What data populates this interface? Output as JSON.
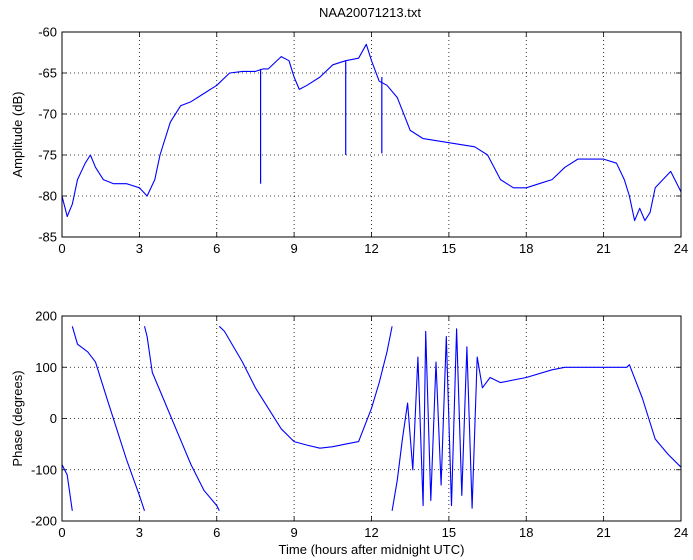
{
  "figure": {
    "title": "NAA20071213.txt",
    "line_color": "#0000ff",
    "grid_color": "#000000"
  },
  "chart_data": [
    {
      "type": "line",
      "title": "NAA20071213.txt",
      "xlabel": "",
      "ylabel": "Amplitude (dB)",
      "xlim": [
        0,
        24
      ],
      "ylim": [
        -85,
        -60
      ],
      "xticks": [
        "0",
        "3",
        "6",
        "9",
        "12",
        "15",
        "18",
        "21",
        "24"
      ],
      "yticks": [
        "-60",
        "-65",
        "-70",
        "-75",
        "-80",
        "-85"
      ],
      "grid": true,
      "series": [
        {
          "x": [
            0,
            0.2,
            0.4,
            0.6,
            0.9,
            1.1,
            1.3,
            1.6,
            2.0,
            2.5,
            3.0,
            3.3,
            3.6,
            3.8,
            4.2,
            4.6,
            5.0,
            5.5,
            6.0,
            6.5,
            7.0,
            7.5,
            7.8,
            8.0,
            8.5,
            8.8,
            9.0,
            9.2,
            9.5,
            10.0,
            10.5,
            11.0,
            11.5,
            11.8,
            12.0,
            12.3,
            12.6,
            13.0,
            13.5,
            14.0,
            15.0,
            16.0,
            16.5,
            17.0,
            17.5,
            18.0,
            18.5,
            19.0,
            19.5,
            20.0,
            20.5,
            21.0,
            21.5,
            21.8,
            22.0,
            22.2,
            22.4,
            22.6,
            22.8,
            23.0,
            23.3,
            23.6,
            24.0
          ],
          "y": [
            -80,
            -82.5,
            -81,
            -78,
            -76,
            -75,
            -76.5,
            -78,
            -78.5,
            -78.5,
            -79,
            -80,
            -78,
            -75,
            -71,
            -69,
            -68.5,
            -67.5,
            -66.5,
            -65,
            -64.8,
            -64.8,
            -64.5,
            -64.5,
            -63,
            -63.5,
            -65.5,
            -67,
            -66.5,
            -65.5,
            -64,
            -63.5,
            -63.2,
            -61.5,
            -63.5,
            -66,
            -66.5,
            -68,
            -72,
            -73,
            -73.5,
            -74,
            -75,
            -78,
            -79,
            -79,
            -78.5,
            -78,
            -76.5,
            -75.5,
            -75.5,
            -75.5,
            -76,
            -78,
            -80,
            -83,
            -81.5,
            -83,
            -82,
            -79,
            -78,
            -77,
            -79.5
          ]
        }
      ],
      "spikes": [
        {
          "x": 7.7,
          "y_from": -64.5,
          "y_to": -78.5
        },
        {
          "x": 11.0,
          "y_from": -63.5,
          "y_to": -75
        },
        {
          "x": 12.4,
          "y_from": -65.5,
          "y_to": -74.8
        }
      ]
    },
    {
      "type": "line",
      "title": "",
      "xlabel": "Time (hours after midnight UTC)",
      "ylabel": "Phase (degrees)",
      "xlim": [
        0,
        24
      ],
      "ylim": [
        -200,
        200
      ],
      "xticks": [
        "0",
        "3",
        "6",
        "9",
        "12",
        "15",
        "18",
        "21",
        "24"
      ],
      "yticks": [
        "200",
        "100",
        "0",
        "-100",
        "-200"
      ],
      "grid": true,
      "segments": [
        {
          "x": [
            0,
            0.2,
            0.4
          ],
          "y": [
            -90,
            -110,
            -180
          ]
        },
        {
          "x": [
            0.4,
            0.6,
            1.0,
            1.3,
            1.8,
            2.5,
            3.0,
            3.2
          ],
          "y": [
            180,
            145,
            130,
            110,
            30,
            -80,
            -150,
            -180
          ]
        },
        {
          "x": [
            3.2,
            3.3,
            3.5,
            4.0,
            4.5,
            5.0,
            5.5,
            6.0,
            6.1
          ],
          "y": [
            180,
            160,
            90,
            30,
            -30,
            -90,
            -140,
            -170,
            -180
          ]
        },
        {
          "x": [
            6.1,
            6.3,
            7.0,
            7.5,
            8.0,
            8.5,
            9.0,
            9.5,
            10.0,
            10.5,
            11.0,
            11.5,
            12.0,
            12.3,
            12.6,
            12.8
          ],
          "y": [
            180,
            170,
            110,
            60,
            20,
            -20,
            -45,
            -52,
            -58,
            -55,
            -50,
            -45,
            20,
            70,
            130,
            180
          ]
        },
        {
          "x": [
            12.8,
            13.0,
            13.2,
            13.4,
            13.6,
            13.8,
            14.0,
            14.1,
            14.3,
            14.5,
            14.7,
            14.9,
            15.1,
            15.3,
            15.5,
            15.7,
            15.9,
            16.1,
            16.3,
            16.6,
            17.0,
            18.0,
            19.0,
            19.5,
            20.0,
            21.0,
            21.5,
            21.9,
            22.0,
            22.5,
            23.0,
            23.5,
            24.0
          ],
          "y": [
            -180,
            -120,
            -40,
            30,
            -100,
            120,
            -170,
            170,
            -160,
            110,
            -130,
            160,
            -170,
            175,
            -150,
            140,
            -175,
            120,
            60,
            80,
            70,
            80,
            95,
            100,
            100,
            100,
            100,
            100,
            105,
            40,
            -40,
            -70,
            -95
          ]
        }
      ]
    }
  ]
}
